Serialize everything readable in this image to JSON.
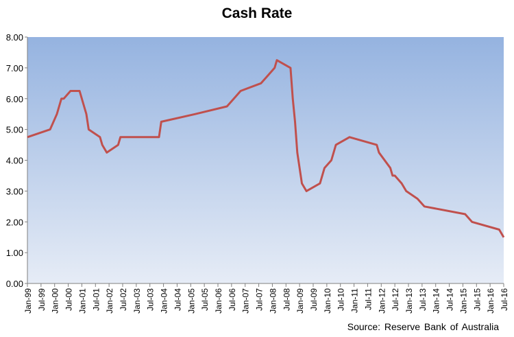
{
  "chart_data": {
    "type": "line",
    "title": "Cash Rate",
    "source": "Source: Reserve  Bank of Australia",
    "xlabel": "",
    "ylabel": "",
    "ylim": [
      0,
      8
    ],
    "yticks": [
      "0.00",
      "1.00",
      "2.00",
      "3.00",
      "4.00",
      "5.00",
      "6.00",
      "7.00",
      "8.00"
    ],
    "xlim": [
      "1999-01",
      "2016-07"
    ],
    "xticks": [
      "Jan-99",
      "Jul-99",
      "Jan-00",
      "Jul-00",
      "Jan-01",
      "Jul-01",
      "Jan-02",
      "Jul-02",
      "Jan-03",
      "Jul-03",
      "Jan-04",
      "Jul-04",
      "Jan-05",
      "Jul-05",
      "Jan-06",
      "Jul-06",
      "Jan-07",
      "Jul-07",
      "Jan-08",
      "Jul-08",
      "Jan-09",
      "Jul-09",
      "Jan-10",
      "Jul-10",
      "Jan-11",
      "Jul-11",
      "Jan-12",
      "Jul-12",
      "Jan-13",
      "Jul-13",
      "Jan-14",
      "Jul-14",
      "Jan-15",
      "Jul-15",
      "Jan-16",
      "Jul-16"
    ],
    "grid": false,
    "colors": {
      "line": "#c0504d",
      "plot_bg_top": "#95b3e0",
      "plot_bg_bottom": "#e6ecf6"
    },
    "series": [
      {
        "x": [
          "1999-01",
          "1999-11",
          "2000-02",
          "2000-03",
          "2000-04",
          "2000-05",
          "2000-08",
          "2000-12",
          "2001-02",
          "2001-03",
          "2001-04",
          "2001-09",
          "2001-10",
          "2001-12",
          "2002-05",
          "2002-06",
          "2003-11",
          "2003-12",
          "2005-03",
          "2006-05",
          "2006-08",
          "2006-11",
          "2007-08",
          "2007-11",
          "2008-02",
          "2008-03",
          "2008-09",
          "2008-10",
          "2008-11",
          "2008-12",
          "2009-02",
          "2009-04",
          "2009-10",
          "2009-11",
          "2009-12",
          "2010-03",
          "2010-04",
          "2010-05",
          "2010-11",
          "2011-11",
          "2011-12",
          "2012-05",
          "2012-06",
          "2012-07",
          "2012-10",
          "2012-12",
          "2013-05",
          "2013-08",
          "2015-02",
          "2015-05",
          "2016-05",
          "2016-07"
        ],
        "values": [
          4.75,
          5.0,
          5.5,
          5.75,
          6.0,
          6.0,
          6.25,
          6.25,
          5.75,
          5.5,
          5.0,
          4.75,
          4.5,
          4.25,
          4.5,
          4.75,
          4.75,
          5.25,
          5.5,
          5.75,
          6.0,
          6.25,
          6.5,
          6.75,
          7.0,
          7.25,
          7.0,
          6.0,
          5.25,
          4.25,
          3.25,
          3.0,
          3.25,
          3.5,
          3.75,
          4.0,
          4.25,
          4.5,
          4.75,
          4.5,
          4.25,
          3.75,
          3.5,
          3.5,
          3.25,
          3.0,
          2.75,
          2.5,
          2.25,
          2.0,
          1.75,
          1.5
        ]
      }
    ]
  }
}
